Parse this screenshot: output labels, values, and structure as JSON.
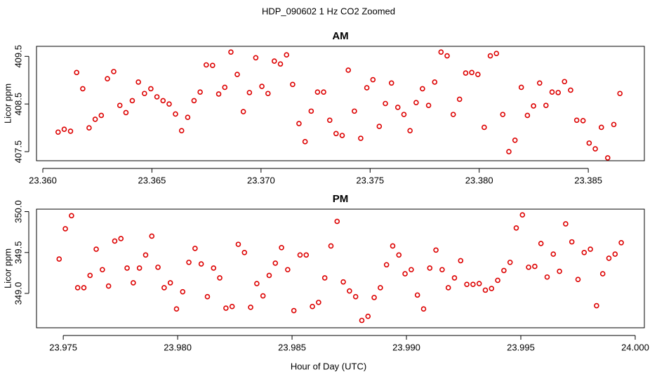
{
  "title": "HDP_090602  1 Hz CO2 Zoomed",
  "x_label": "Hour of Day (UTC)",
  "chart_data": [
    {
      "type": "scatter",
      "title": "AM",
      "y_label": "Licor ppm",
      "color": "#dd0000",
      "x": [
        23.3607,
        23.36098,
        23.36127,
        23.36155,
        23.36183,
        23.36212,
        23.3624,
        23.36268,
        23.36296,
        23.36325,
        23.36353,
        23.36381,
        23.3641,
        23.36438,
        23.36466,
        23.36495,
        23.36523,
        23.36551,
        23.36579,
        23.36608,
        23.36636,
        23.36664,
        23.36693,
        23.36721,
        23.36749,
        23.36778,
        23.36806,
        23.36834,
        23.36862,
        23.36891,
        23.36919,
        23.36947,
        23.36976,
        23.37004,
        23.37032,
        23.37061,
        23.37089,
        23.37117,
        23.37145,
        23.37174,
        23.37202,
        23.3723,
        23.37259,
        23.37287,
        23.37315,
        23.37344,
        23.37372,
        23.374,
        23.37428,
        23.37457,
        23.37485,
        23.37513,
        23.37542,
        23.3757,
        23.37598,
        23.37627,
        23.37655,
        23.37683,
        23.37711,
        23.3774,
        23.37768,
        23.37796,
        23.37825,
        23.37853,
        23.37881,
        23.3791,
        23.37938,
        23.37966,
        23.37994,
        23.38023,
        23.38051,
        23.38079,
        23.38108,
        23.38136,
        23.38164,
        23.38193,
        23.38221,
        23.38249,
        23.38277,
        23.38306,
        23.38334,
        23.38362,
        23.38391,
        23.38419,
        23.38447,
        23.38476,
        23.38504,
        23.38532,
        23.3856,
        23.38589,
        23.38617,
        23.38645
      ],
      "values": [
        407.91,
        407.97,
        407.93,
        409.16,
        408.82,
        408.0,
        408.18,
        408.26,
        409.03,
        409.18,
        408.47,
        408.32,
        408.57,
        408.96,
        408.72,
        408.82,
        408.65,
        408.57,
        408.5,
        408.29,
        407.94,
        408.22,
        408.57,
        408.75,
        409.32,
        409.31,
        408.71,
        408.85,
        409.59,
        409.12,
        408.34,
        408.74,
        409.47,
        408.87,
        408.72,
        409.4,
        409.34,
        409.53,
        408.91,
        408.09,
        407.71,
        408.35,
        408.75,
        408.75,
        408.16,
        407.88,
        407.84,
        409.21,
        408.35,
        407.78,
        408.84,
        409.01,
        408.03,
        408.51,
        408.94,
        408.43,
        408.28,
        407.94,
        408.53,
        408.82,
        408.47,
        408.96,
        409.59,
        409.51,
        408.28,
        408.6,
        409.15,
        409.16,
        409.12,
        408.01,
        409.51,
        409.56,
        408.28,
        407.5,
        407.74,
        408.85,
        408.26,
        408.46,
        408.94,
        408.47,
        408.75,
        408.74,
        408.97,
        408.79,
        408.16,
        408.15,
        407.68,
        407.56,
        408.01,
        407.37,
        408.07,
        408.72
      ],
      "xlim": [
        23.35971,
        23.38757
      ],
      "ylim": [
        407.31,
        409.71
      ],
      "xticks": [
        {
          "value": 23.36,
          "label": "23.360"
        },
        23.365,
        {
          "value": 23.37,
          "label": "23.370"
        },
        23.375,
        {
          "value": 23.38,
          "label": "23.380"
        },
        23.385
      ],
      "yticks": [
        407.5,
        408.5,
        409.5
      ]
    },
    {
      "type": "scatter",
      "title": "PM",
      "y_label": "Licor ppm",
      "color": "#dd0000",
      "x": [
        23.97482,
        23.97509,
        23.97536,
        23.97563,
        23.9759,
        23.97617,
        23.97644,
        23.97671,
        23.97698,
        23.97725,
        23.97752,
        23.97779,
        23.97806,
        23.97833,
        23.9786,
        23.97887,
        23.97914,
        23.97941,
        23.97968,
        23.97995,
        23.98022,
        23.98049,
        23.98076,
        23.98103,
        23.9813,
        23.98157,
        23.98184,
        23.98211,
        23.98238,
        23.98265,
        23.98292,
        23.98319,
        23.98346,
        23.98373,
        23.984,
        23.98427,
        23.98454,
        23.98481,
        23.98508,
        23.98535,
        23.98562,
        23.98589,
        23.98616,
        23.98643,
        23.9867,
        23.98697,
        23.98724,
        23.98751,
        23.98778,
        23.98805,
        23.98832,
        23.98859,
        23.98886,
        23.98913,
        23.9894,
        23.98967,
        23.98994,
        23.99021,
        23.99048,
        23.99075,
        23.99102,
        23.99129,
        23.99156,
        23.99183,
        23.9921,
        23.99237,
        23.99264,
        23.99291,
        23.99318,
        23.99345,
        23.99372,
        23.99399,
        23.99426,
        23.99453,
        23.9948,
        23.99507,
        23.99534,
        23.99561,
        23.99588,
        23.99615,
        23.99642,
        23.99669,
        23.99696,
        23.99723,
        23.9975,
        23.99777,
        23.99804,
        23.99831,
        23.99858,
        23.99885,
        23.99912,
        23.99939
      ],
      "values": [
        349.42,
        349.79,
        349.95,
        349.07,
        349.07,
        349.22,
        349.54,
        349.29,
        349.09,
        349.64,
        349.67,
        349.31,
        349.13,
        349.31,
        349.47,
        349.7,
        349.32,
        349.07,
        349.13,
        348.81,
        349.02,
        349.38,
        349.55,
        349.36,
        348.96,
        349.31,
        349.19,
        348.82,
        348.84,
        349.6,
        349.5,
        348.83,
        349.12,
        348.97,
        349.22,
        349.37,
        349.56,
        349.29,
        348.79,
        349.47,
        349.47,
        348.84,
        348.89,
        349.19,
        349.58,
        349.88,
        349.14,
        349.03,
        348.96,
        348.67,
        348.72,
        348.95,
        349.07,
        349.35,
        349.58,
        349.47,
        349.24,
        349.29,
        348.98,
        348.81,
        349.31,
        349.53,
        349.29,
        349.07,
        349.19,
        349.4,
        349.11,
        349.11,
        349.12,
        349.04,
        349.06,
        349.16,
        349.28,
        349.38,
        349.8,
        349.96,
        349.32,
        349.33,
        349.61,
        349.2,
        349.48,
        349.27,
        349.85,
        349.63,
        349.17,
        349.5,
        349.54,
        348.85,
        349.24,
        349.43,
        349.48,
        349.62
      ],
      "xlim": [
        23.97383,
        24.0004
      ],
      "ylim": [
        348.58,
        350.03
      ],
      "xticks": [
        23.975,
        {
          "value": 23.98,
          "label": "23.980"
        },
        23.985,
        {
          "value": 23.99,
          "label": "23.990"
        },
        23.995,
        {
          "value": 24,
          "label": "24.000"
        }
      ],
      "yticks": [
        {
          "value": 349,
          "label": "349.0"
        },
        349.5,
        {
          "value": 350,
          "label": "350.0"
        }
      ]
    }
  ]
}
